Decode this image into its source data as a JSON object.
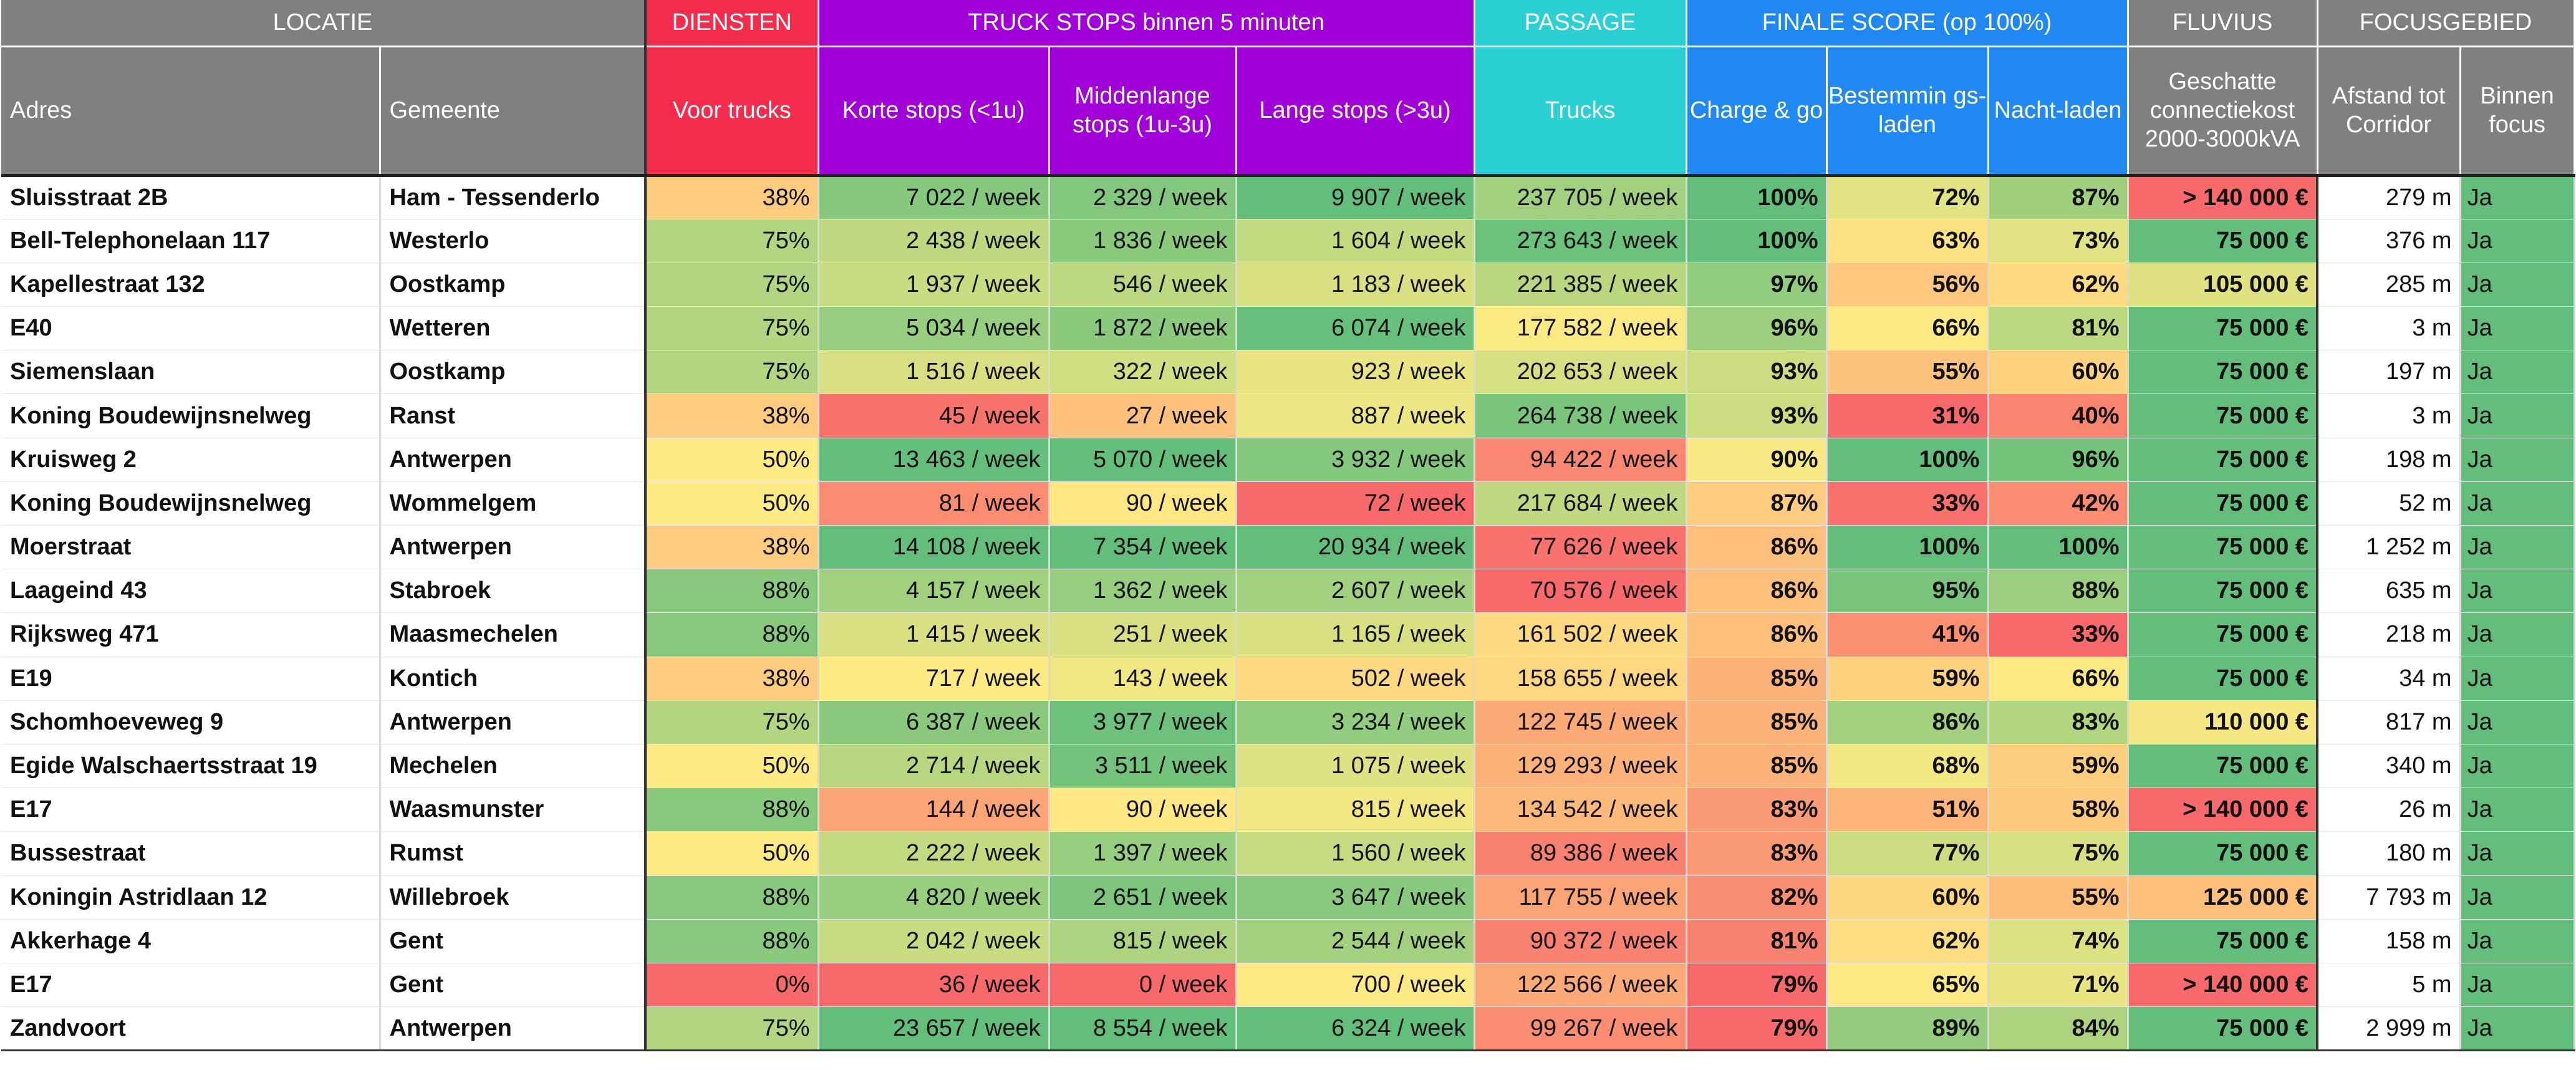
{
  "groups": {
    "locatie": "LOCATIE",
    "diensten": "DIENSTEN",
    "truckstops": "TRUCK STOPS binnen 5 minuten",
    "passage": "PASSAGE",
    "finale": "FINALE SCORE (op 100%)",
    "fluvius": "FLUVIUS",
    "focus": "FOCUSGEBIED"
  },
  "columns": {
    "adres": "Adres",
    "gemeente": "Gemeente",
    "voor_trucks": "Voor trucks",
    "korte": "Korte stops (<1u)",
    "middenlange": "Middenlange stops (1u-3u)",
    "lange": "Lange stops (>3u)",
    "trucks": "Trucks",
    "charge_go": "Charge & go",
    "bestemming": "Bestemmin gs-laden",
    "nacht": "Nacht-laden",
    "connectiekost": "Geschatte connectiekost 2000-3000kVA",
    "afstand": "Afstand tot Corridor",
    "binnen": "Binnen focus"
  },
  "colors": {
    "header_grey": "#808080",
    "header_red": "#f42b4a",
    "header_purple": "#a200d9",
    "header_cyan": "#2ad0d3",
    "header_blue": "#1f88f2",
    "scale_green": "#63be7b",
    "scale_yellow": "#ffeb84",
    "scale_red": "#f8696b"
  },
  "rows": [
    {
      "adres": "Sluisstraat 2B",
      "gemeente": "Ham - Tessenderlo",
      "voor_trucks": "38%",
      "korte": "7 022 / week",
      "midden": "2 329 / week",
      "lange": "9 907 / week",
      "trucks": "237 705 / week",
      "charge": "100%",
      "bestemming": "72%",
      "nacht": "87%",
      "kost": "> 140 000 €",
      "afstand": "279 m",
      "focus": "Ja"
    },
    {
      "adres": "Bell-Telephonelaan 117",
      "gemeente": "Westerlo",
      "voor_trucks": "75%",
      "korte": "2 438 / week",
      "midden": "1 836 / week",
      "lange": "1 604 / week",
      "trucks": "273 643 / week",
      "charge": "100%",
      "bestemming": "63%",
      "nacht": "73%",
      "kost": "75 000 €",
      "afstand": "376 m",
      "focus": "Ja"
    },
    {
      "adres": "Kapellestraat 132",
      "gemeente": "Oostkamp",
      "voor_trucks": "75%",
      "korte": "1 937 / week",
      "midden": "546 / week",
      "lange": "1 183 / week",
      "trucks": "221 385 / week",
      "charge": "97%",
      "bestemming": "56%",
      "nacht": "62%",
      "kost": "105 000 €",
      "afstand": "285 m",
      "focus": "Ja"
    },
    {
      "adres": "E40",
      "gemeente": "Wetteren",
      "voor_trucks": "75%",
      "korte": "5 034 / week",
      "midden": "1 872 / week",
      "lange": "6 074 / week",
      "trucks": "177 582 / week",
      "charge": "96%",
      "bestemming": "66%",
      "nacht": "81%",
      "kost": "75 000 €",
      "afstand": "3 m",
      "focus": "Ja"
    },
    {
      "adres": "Siemenslaan",
      "gemeente": "Oostkamp",
      "voor_trucks": "75%",
      "korte": "1 516 / week",
      "midden": "322 / week",
      "lange": "923 / week",
      "trucks": "202 653 / week",
      "charge": "93%",
      "bestemming": "55%",
      "nacht": "60%",
      "kost": "75 000 €",
      "afstand": "197 m",
      "focus": "Ja"
    },
    {
      "adres": "Koning Boudewijnsnelweg",
      "gemeente": "Ranst",
      "voor_trucks": "38%",
      "korte": "45 / week",
      "midden": "27 / week",
      "lange": "887 / week",
      "trucks": "264 738 / week",
      "charge": "93%",
      "bestemming": "31%",
      "nacht": "40%",
      "kost": "75 000 €",
      "afstand": "3 m",
      "focus": "Ja"
    },
    {
      "adres": "Kruisweg 2",
      "gemeente": "Antwerpen",
      "voor_trucks": "50%",
      "korte": "13 463 / week",
      "midden": "5 070 / week",
      "lange": "3 932 / week",
      "trucks": "94 422 / week",
      "charge": "90%",
      "bestemming": "100%",
      "nacht": "96%",
      "kost": "75 000 €",
      "afstand": "198 m",
      "focus": "Ja"
    },
    {
      "adres": "Koning Boudewijnsnelweg",
      "gemeente": "Wommelgem",
      "voor_trucks": "50%",
      "korte": "81 / week",
      "midden": "90 / week",
      "lange": "72 / week",
      "trucks": "217 684 / week",
      "charge": "87%",
      "bestemming": "33%",
      "nacht": "42%",
      "kost": "75 000 €",
      "afstand": "52 m",
      "focus": "Ja"
    },
    {
      "adres": "Moerstraat",
      "gemeente": "Antwerpen",
      "voor_trucks": "38%",
      "korte": "14 108 / week",
      "midden": "7 354 / week",
      "lange": "20 934 / week",
      "trucks": "77 626 / week",
      "charge": "86%",
      "bestemming": "100%",
      "nacht": "100%",
      "kost": "75 000 €",
      "afstand": "1 252 m",
      "focus": "Ja"
    },
    {
      "adres": "Laageind 43",
      "gemeente": "Stabroek",
      "voor_trucks": "88%",
      "korte": "4 157 / week",
      "midden": "1 362 / week",
      "lange": "2 607 / week",
      "trucks": "70 576 / week",
      "charge": "86%",
      "bestemming": "95%",
      "nacht": "88%",
      "kost": "75 000 €",
      "afstand": "635 m",
      "focus": "Ja"
    },
    {
      "adres": "Rijksweg 471",
      "gemeente": "Maasmechelen",
      "voor_trucks": "88%",
      "korte": "1 415 / week",
      "midden": "251 / week",
      "lange": "1 165 / week",
      "trucks": "161 502 / week",
      "charge": "86%",
      "bestemming": "41%",
      "nacht": "33%",
      "kost": "75 000 €",
      "afstand": "218 m",
      "focus": "Ja"
    },
    {
      "adres": "E19",
      "gemeente": "Kontich",
      "voor_trucks": "38%",
      "korte": "717 / week",
      "midden": "143 / week",
      "lange": "502 / week",
      "trucks": "158 655 / week",
      "charge": "85%",
      "bestemming": "59%",
      "nacht": "66%",
      "kost": "75 000 €",
      "afstand": "34 m",
      "focus": "Ja"
    },
    {
      "adres": "Schomhoeveweg 9",
      "gemeente": "Antwerpen",
      "voor_trucks": "75%",
      "korte": "6 387 / week",
      "midden": "3 977 / week",
      "lange": "3 234 / week",
      "trucks": "122 745 / week",
      "charge": "85%",
      "bestemming": "86%",
      "nacht": "83%",
      "kost": "110 000 €",
      "afstand": "817 m",
      "focus": "Ja"
    },
    {
      "adres": "Egide Walschaertsstraat 19",
      "gemeente": "Mechelen",
      "voor_trucks": "50%",
      "korte": "2 714 / week",
      "midden": "3 511 / week",
      "lange": "1 075 / week",
      "trucks": "129 293 / week",
      "charge": "85%",
      "bestemming": "68%",
      "nacht": "59%",
      "kost": "75 000 €",
      "afstand": "340 m",
      "focus": "Ja"
    },
    {
      "adres": "E17",
      "gemeente": "Waasmunster",
      "voor_trucks": "88%",
      "korte": "144 / week",
      "midden": "90 / week",
      "lange": "815 / week",
      "trucks": "134 542 / week",
      "charge": "83%",
      "bestemming": "51%",
      "nacht": "58%",
      "kost": "> 140 000 €",
      "afstand": "26 m",
      "focus": "Ja"
    },
    {
      "adres": "Bussestraat",
      "gemeente": "Rumst",
      "voor_trucks": "50%",
      "korte": "2 222 / week",
      "midden": "1 397 / week",
      "lange": "1 560 / week",
      "trucks": "89 386 / week",
      "charge": "83%",
      "bestemming": "77%",
      "nacht": "75%",
      "kost": "75 000 €",
      "afstand": "180 m",
      "focus": "Ja"
    },
    {
      "adres": "Koningin Astridlaan 12",
      "gemeente": "Willebroek",
      "voor_trucks": "88%",
      "korte": "4 820 / week",
      "midden": "2 651 / week",
      "lange": "3 647 / week",
      "trucks": "117 755 / week",
      "charge": "82%",
      "bestemming": "60%",
      "nacht": "55%",
      "kost": "125 000 €",
      "afstand": "7 793 m",
      "focus": "Ja"
    },
    {
      "adres": "Akkerhage 4",
      "gemeente": "Gent",
      "voor_trucks": "88%",
      "korte": "2 042 / week",
      "midden": "815 / week",
      "lange": "2 544 / week",
      "trucks": "90 372 / week",
      "charge": "81%",
      "bestemming": "62%",
      "nacht": "74%",
      "kost": "75 000 €",
      "afstand": "158 m",
      "focus": "Ja"
    },
    {
      "adres": "E17",
      "gemeente": "Gent",
      "voor_trucks": "0%",
      "korte": "36 / week",
      "midden": "0 / week",
      "lange": "700 / week",
      "trucks": "122 566 / week",
      "charge": "79%",
      "bestemming": "65%",
      "nacht": "71%",
      "kost": "> 140 000 €",
      "afstand": "5 m",
      "focus": "Ja"
    },
    {
      "adres": "Zandvoort",
      "gemeente": "Antwerpen",
      "voor_trucks": "75%",
      "korte": "23 657 / week",
      "midden": "8 554 / week",
      "lange": "6 324 / week",
      "trucks": "99 267 / week",
      "charge": "79%",
      "bestemming": "89%",
      "nacht": "84%",
      "kost": "75 000 €",
      "afstand": "2 999 m",
      "focus": "Ja"
    }
  ]
}
